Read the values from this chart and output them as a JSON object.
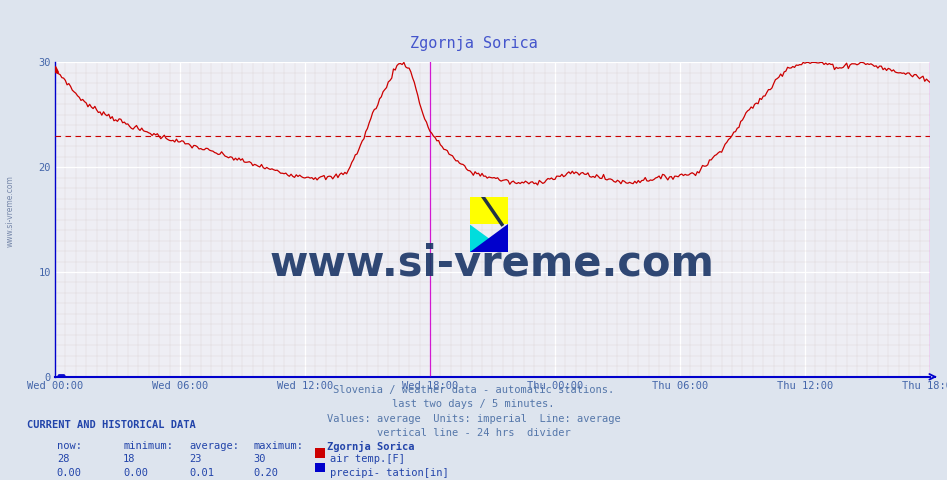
{
  "title": "Zgornja Sorica",
  "bg_color": "#dde4ee",
  "plot_bg_color": "#eeeef4",
  "line_color": "#cc0000",
  "avg_line_value": 23,
  "ylim": [
    0,
    30
  ],
  "yticks": [
    0,
    10,
    20,
    30
  ],
  "tick_color": "#4466aa",
  "title_color": "#4455cc",
  "watermark": "www.si-vreme.com",
  "watermark_color": "#1a3566",
  "subtitle_lines": [
    "Slovenia / weather data - automatic stations.",
    "last two days / 5 minutes.",
    "Values: average  Units: imperial  Line: average",
    "vertical line - 24 hrs  divider"
  ],
  "subtitle_color": "#5577aa",
  "footer_label": "CURRENT AND HISTORICAL DATA",
  "footer_color": "#2244aa",
  "now": "28",
  "minimum": "18",
  "average": "23",
  "maximum": "30",
  "station": "Zgornja Sorica",
  "series1_label": "air temp.[F]",
  "series1_color": "#cc0000",
  "series2_label": "precipi- tation[in]",
  "series2_color": "#0000cc",
  "now2": "0.00",
  "min2": "0.00",
  "avg2": "0.01",
  "max2": "0.20",
  "xtick_labels": [
    "Wed 00:00",
    "Wed 06:00",
    "Wed 12:00",
    "Wed 18:00",
    "Thu 00:00",
    "Thu 06:00",
    "Thu 12:00",
    "Thu 18:00"
  ],
  "xtick_positions": [
    0,
    72,
    144,
    216,
    288,
    360,
    432,
    504
  ],
  "total_points": 504,
  "divider_x": 216,
  "end_x": 504,
  "ctrl_points": [
    [
      0,
      29.2
    ],
    [
      5,
      28.5
    ],
    [
      12,
      27.0
    ],
    [
      20,
      25.8
    ],
    [
      30,
      25.0
    ],
    [
      40,
      24.2
    ],
    [
      50,
      23.5
    ],
    [
      60,
      23.0
    ],
    [
      70,
      22.5
    ],
    [
      80,
      22.0
    ],
    [
      90,
      21.5
    ],
    [
      100,
      21.0
    ],
    [
      110,
      20.5
    ],
    [
      120,
      20.0
    ],
    [
      130,
      19.5
    ],
    [
      140,
      19.2
    ],
    [
      150,
      19.0
    ],
    [
      160,
      19.0
    ],
    [
      168,
      19.5
    ],
    [
      176,
      22.0
    ],
    [
      184,
      25.5
    ],
    [
      192,
      28.0
    ],
    [
      196,
      29.5
    ],
    [
      200,
      30.0
    ],
    [
      204,
      29.5
    ],
    [
      208,
      27.5
    ],
    [
      212,
      25.0
    ],
    [
      216,
      23.5
    ],
    [
      220,
      22.5
    ],
    [
      226,
      21.5
    ],
    [
      232,
      20.5
    ],
    [
      240,
      19.5
    ],
    [
      252,
      19.0
    ],
    [
      264,
      18.5
    ],
    [
      276,
      18.5
    ],
    [
      288,
      19.0
    ],
    [
      300,
      19.5
    ],
    [
      310,
      19.2
    ],
    [
      320,
      18.8
    ],
    [
      330,
      18.5
    ],
    [
      340,
      18.8
    ],
    [
      350,
      19.0
    ],
    [
      360,
      19.2
    ],
    [
      370,
      19.5
    ],
    [
      380,
      21.0
    ],
    [
      390,
      23.0
    ],
    [
      400,
      25.5
    ],
    [
      410,
      27.0
    ],
    [
      416,
      28.5
    ],
    [
      422,
      29.5
    ],
    [
      428,
      29.8
    ],
    [
      434,
      30.0
    ],
    [
      440,
      30.0
    ],
    [
      446,
      29.8
    ],
    [
      452,
      29.5
    ],
    [
      458,
      29.8
    ],
    [
      464,
      30.0
    ],
    [
      470,
      29.8
    ],
    [
      476,
      29.5
    ],
    [
      482,
      29.2
    ],
    [
      488,
      29.0
    ],
    [
      494,
      28.8
    ],
    [
      500,
      28.5
    ],
    [
      504,
      28.2
    ]
  ]
}
